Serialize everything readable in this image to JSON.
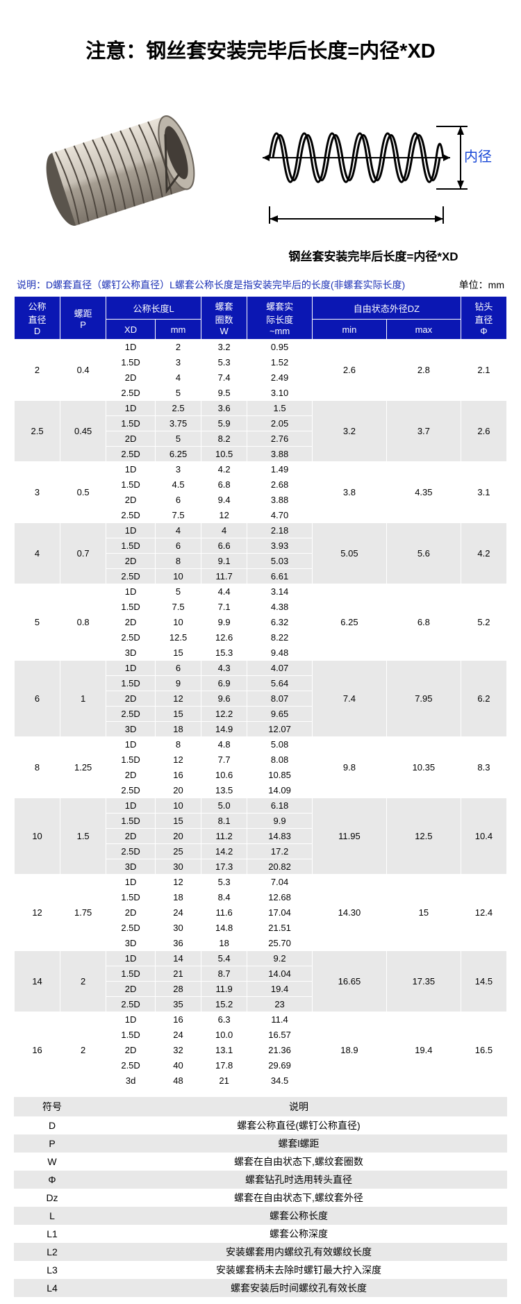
{
  "title": "注意：钢丝套安装完毕后长度=内径*XD",
  "diagram_caption": "钢丝套安装完毕后长度=内径*XD",
  "inner_d_label": "内径D",
  "note_text": "说明：D螺套直径（螺钉公称直径）L螺套公称长度是指安装完毕后的长度(非螺套实际长度)",
  "unit_text": "单位：mm",
  "headers": {
    "D_top": "公称",
    "D_mid": "直径",
    "D_bot": "D",
    "P_top": "螺距",
    "P_bot": "P",
    "L_top": "公称长度L",
    "XD": "XD",
    "mm": "mm",
    "W_top": "螺套",
    "W_mid": "圈数",
    "W_bot": "W",
    "real_top": "螺套实",
    "real_mid": "际长度",
    "real_bot": "~mm",
    "DZ_top": "自由状态外径DZ",
    "min": "min",
    "max": "max",
    "phi_top": "钻头",
    "phi_mid": "直径",
    "phi_bot": "Φ"
  },
  "groups": [
    {
      "D": "2",
      "P": "0.4",
      "min": "2.6",
      "max": "2.8",
      "phi": "2.1",
      "rows": [
        {
          "xd": "1D",
          "mm": "2",
          "w": "3.2",
          "real": "0.95"
        },
        {
          "xd": "1.5D",
          "mm": "3",
          "w": "5.3",
          "real": "1.52"
        },
        {
          "xd": "2D",
          "mm": "4",
          "w": "7.4",
          "real": "2.49"
        },
        {
          "xd": "2.5D",
          "mm": "5",
          "w": "9.5",
          "real": "3.10"
        }
      ]
    },
    {
      "D": "2.5",
      "P": "0.45",
      "min": "3.2",
      "max": "3.7",
      "phi": "2.6",
      "rows": [
        {
          "xd": "1D",
          "mm": "2.5",
          "w": "3.6",
          "real": "1.5"
        },
        {
          "xd": "1.5D",
          "mm": "3.75",
          "w": "5.9",
          "real": "2.05"
        },
        {
          "xd": "2D",
          "mm": "5",
          "w": "8.2",
          "real": "2.76"
        },
        {
          "xd": "2.5D",
          "mm": "6.25",
          "w": "10.5",
          "real": "3.88"
        }
      ]
    },
    {
      "D": "3",
      "P": "0.5",
      "min": "3.8",
      "max": "4.35",
      "phi": "3.1",
      "rows": [
        {
          "xd": "1D",
          "mm": "3",
          "w": "4.2",
          "real": "1.49"
        },
        {
          "xd": "1.5D",
          "mm": "4.5",
          "w": "6.8",
          "real": "2.68"
        },
        {
          "xd": "2D",
          "mm": "6",
          "w": "9.4",
          "real": "3.88"
        },
        {
          "xd": "2.5D",
          "mm": "7.5",
          "w": "12",
          "real": "4.70"
        }
      ]
    },
    {
      "D": "4",
      "P": "0.7",
      "min": "5.05",
      "max": "5.6",
      "phi": "4.2",
      "rows": [
        {
          "xd": "1D",
          "mm": "4",
          "w": "4",
          "real": "2.18"
        },
        {
          "xd": "1.5D",
          "mm": "6",
          "w": "6.6",
          "real": "3.93"
        },
        {
          "xd": "2D",
          "mm": "8",
          "w": "9.1",
          "real": "5.03"
        },
        {
          "xd": "2.5D",
          "mm": "10",
          "w": "11.7",
          "real": "6.61"
        }
      ]
    },
    {
      "D": "5",
      "P": "0.8",
      "min": "6.25",
      "max": "6.8",
      "phi": "5.2",
      "rows": [
        {
          "xd": "1D",
          "mm": "5",
          "w": "4.4",
          "real": "3.14"
        },
        {
          "xd": "1.5D",
          "mm": "7.5",
          "w": "7.1",
          "real": "4.38"
        },
        {
          "xd": "2D",
          "mm": "10",
          "w": "9.9",
          "real": "6.32"
        },
        {
          "xd": "2.5D",
          "mm": "12.5",
          "w": "12.6",
          "real": "8.22"
        },
        {
          "xd": "3D",
          "mm": "15",
          "w": "15.3",
          "real": "9.48"
        }
      ]
    },
    {
      "D": "6",
      "P": "1",
      "min": "7.4",
      "max": "7.95",
      "phi": "6.2",
      "rows": [
        {
          "xd": "1D",
          "mm": "6",
          "w": "4.3",
          "real": "4.07"
        },
        {
          "xd": "1.5D",
          "mm": "9",
          "w": "6.9",
          "real": "5.64"
        },
        {
          "xd": "2D",
          "mm": "12",
          "w": "9.6",
          "real": "8.07"
        },
        {
          "xd": "2.5D",
          "mm": "15",
          "w": "12.2",
          "real": "9.65"
        },
        {
          "xd": "3D",
          "mm": "18",
          "w": "14.9",
          "real": "12.07"
        }
      ]
    },
    {
      "D": "8",
      "P": "1.25",
      "min": "9.8",
      "max": "10.35",
      "phi": "8.3",
      "rows": [
        {
          "xd": "1D",
          "mm": "8",
          "w": "4.8",
          "real": "5.08"
        },
        {
          "xd": "1.5D",
          "mm": "12",
          "w": "7.7",
          "real": "8.08"
        },
        {
          "xd": "2D",
          "mm": "16",
          "w": "10.6",
          "real": "10.85"
        },
        {
          "xd": "2.5D",
          "mm": "20",
          "w": "13.5",
          "real": "14.09"
        }
      ]
    },
    {
      "D": "10",
      "P": "1.5",
      "min": "11.95",
      "max": "12.5",
      "phi": "10.4",
      "rows": [
        {
          "xd": "1D",
          "mm": "10",
          "w": "5.0",
          "real": "6.18"
        },
        {
          "xd": "1.5D",
          "mm": "15",
          "w": "8.1",
          "real": "9.9"
        },
        {
          "xd": "2D",
          "mm": "20",
          "w": "11.2",
          "real": "14.83"
        },
        {
          "xd": "2.5D",
          "mm": "25",
          "w": "14.2",
          "real": "17.2"
        },
        {
          "xd": "3D",
          "mm": "30",
          "w": "17.3",
          "real": "20.82"
        }
      ]
    },
    {
      "D": "12",
      "P": "1.75",
      "min": "14.30",
      "max": "15",
      "phi": "12.4",
      "rows": [
        {
          "xd": "1D",
          "mm": "12",
          "w": "5.3",
          "real": "7.04"
        },
        {
          "xd": "1.5D",
          "mm": "18",
          "w": "8.4",
          "real": "12.68"
        },
        {
          "xd": "2D",
          "mm": "24",
          "w": "11.6",
          "real": "17.04"
        },
        {
          "xd": "2.5D",
          "mm": "30",
          "w": "14.8",
          "real": "21.51"
        },
        {
          "xd": "3D",
          "mm": "36",
          "w": "18",
          "real": "25.70"
        }
      ]
    },
    {
      "D": "14",
      "P": "2",
      "min": "16.65",
      "max": "17.35",
      "phi": "14.5",
      "rows": [
        {
          "xd": "1D",
          "mm": "14",
          "w": "5.4",
          "real": "9.2"
        },
        {
          "xd": "1.5D",
          "mm": "21",
          "w": "8.7",
          "real": "14.04"
        },
        {
          "xd": "2D",
          "mm": "28",
          "w": "11.9",
          "real": "19.4"
        },
        {
          "xd": "2.5D",
          "mm": "35",
          "w": "15.2",
          "real": "23"
        }
      ]
    },
    {
      "D": "16",
      "P": "2",
      "min": "18.9",
      "max": "19.4",
      "phi": "16.5",
      "rows": [
        {
          "xd": "1D",
          "mm": "16",
          "w": "6.3",
          "real": "11.4"
        },
        {
          "xd": "1.5D",
          "mm": "24",
          "w": "10.0",
          "real": "16.57"
        },
        {
          "xd": "2D",
          "mm": "32",
          "w": "13.1",
          "real": "21.36"
        },
        {
          "xd": "2.5D",
          "mm": "40",
          "w": "17.8",
          "real": "29.69"
        },
        {
          "xd": "3d",
          "mm": "48",
          "w": "21",
          "real": "34.5"
        }
      ]
    }
  ],
  "legend_headers": {
    "sym": "符号",
    "desc": "说明"
  },
  "legend": [
    {
      "s": "D",
      "d": "螺套公称直径(螺钉公称直径)"
    },
    {
      "s": "P",
      "d": "螺套l螺距"
    },
    {
      "s": "W",
      "d": "螺套在自由状态下,螺纹套圈数"
    },
    {
      "s": "Φ",
      "d": "螺套钻孔时选用转头直径"
    },
    {
      "s": "Dz",
      "d": "螺套在自由状态下,螺纹套外径"
    },
    {
      "s": "L",
      "d": "螺套公称长度"
    },
    {
      "s": "L1",
      "d": "螺套公称深度"
    },
    {
      "s": "L2",
      "d": "安装螺套用内螺纹孔有效螺纹长度"
    },
    {
      "s": "L3",
      "d": "安装螺套柄未去除时螺钉最大拧入深度"
    },
    {
      "s": "L4",
      "d": "螺套安装后时间螺纹孔有效长度"
    }
  ],
  "colors": {
    "header_bg": "#0b17b3",
    "note_color": "#1a2fb5",
    "alt_row": "#e8e8e8"
  }
}
